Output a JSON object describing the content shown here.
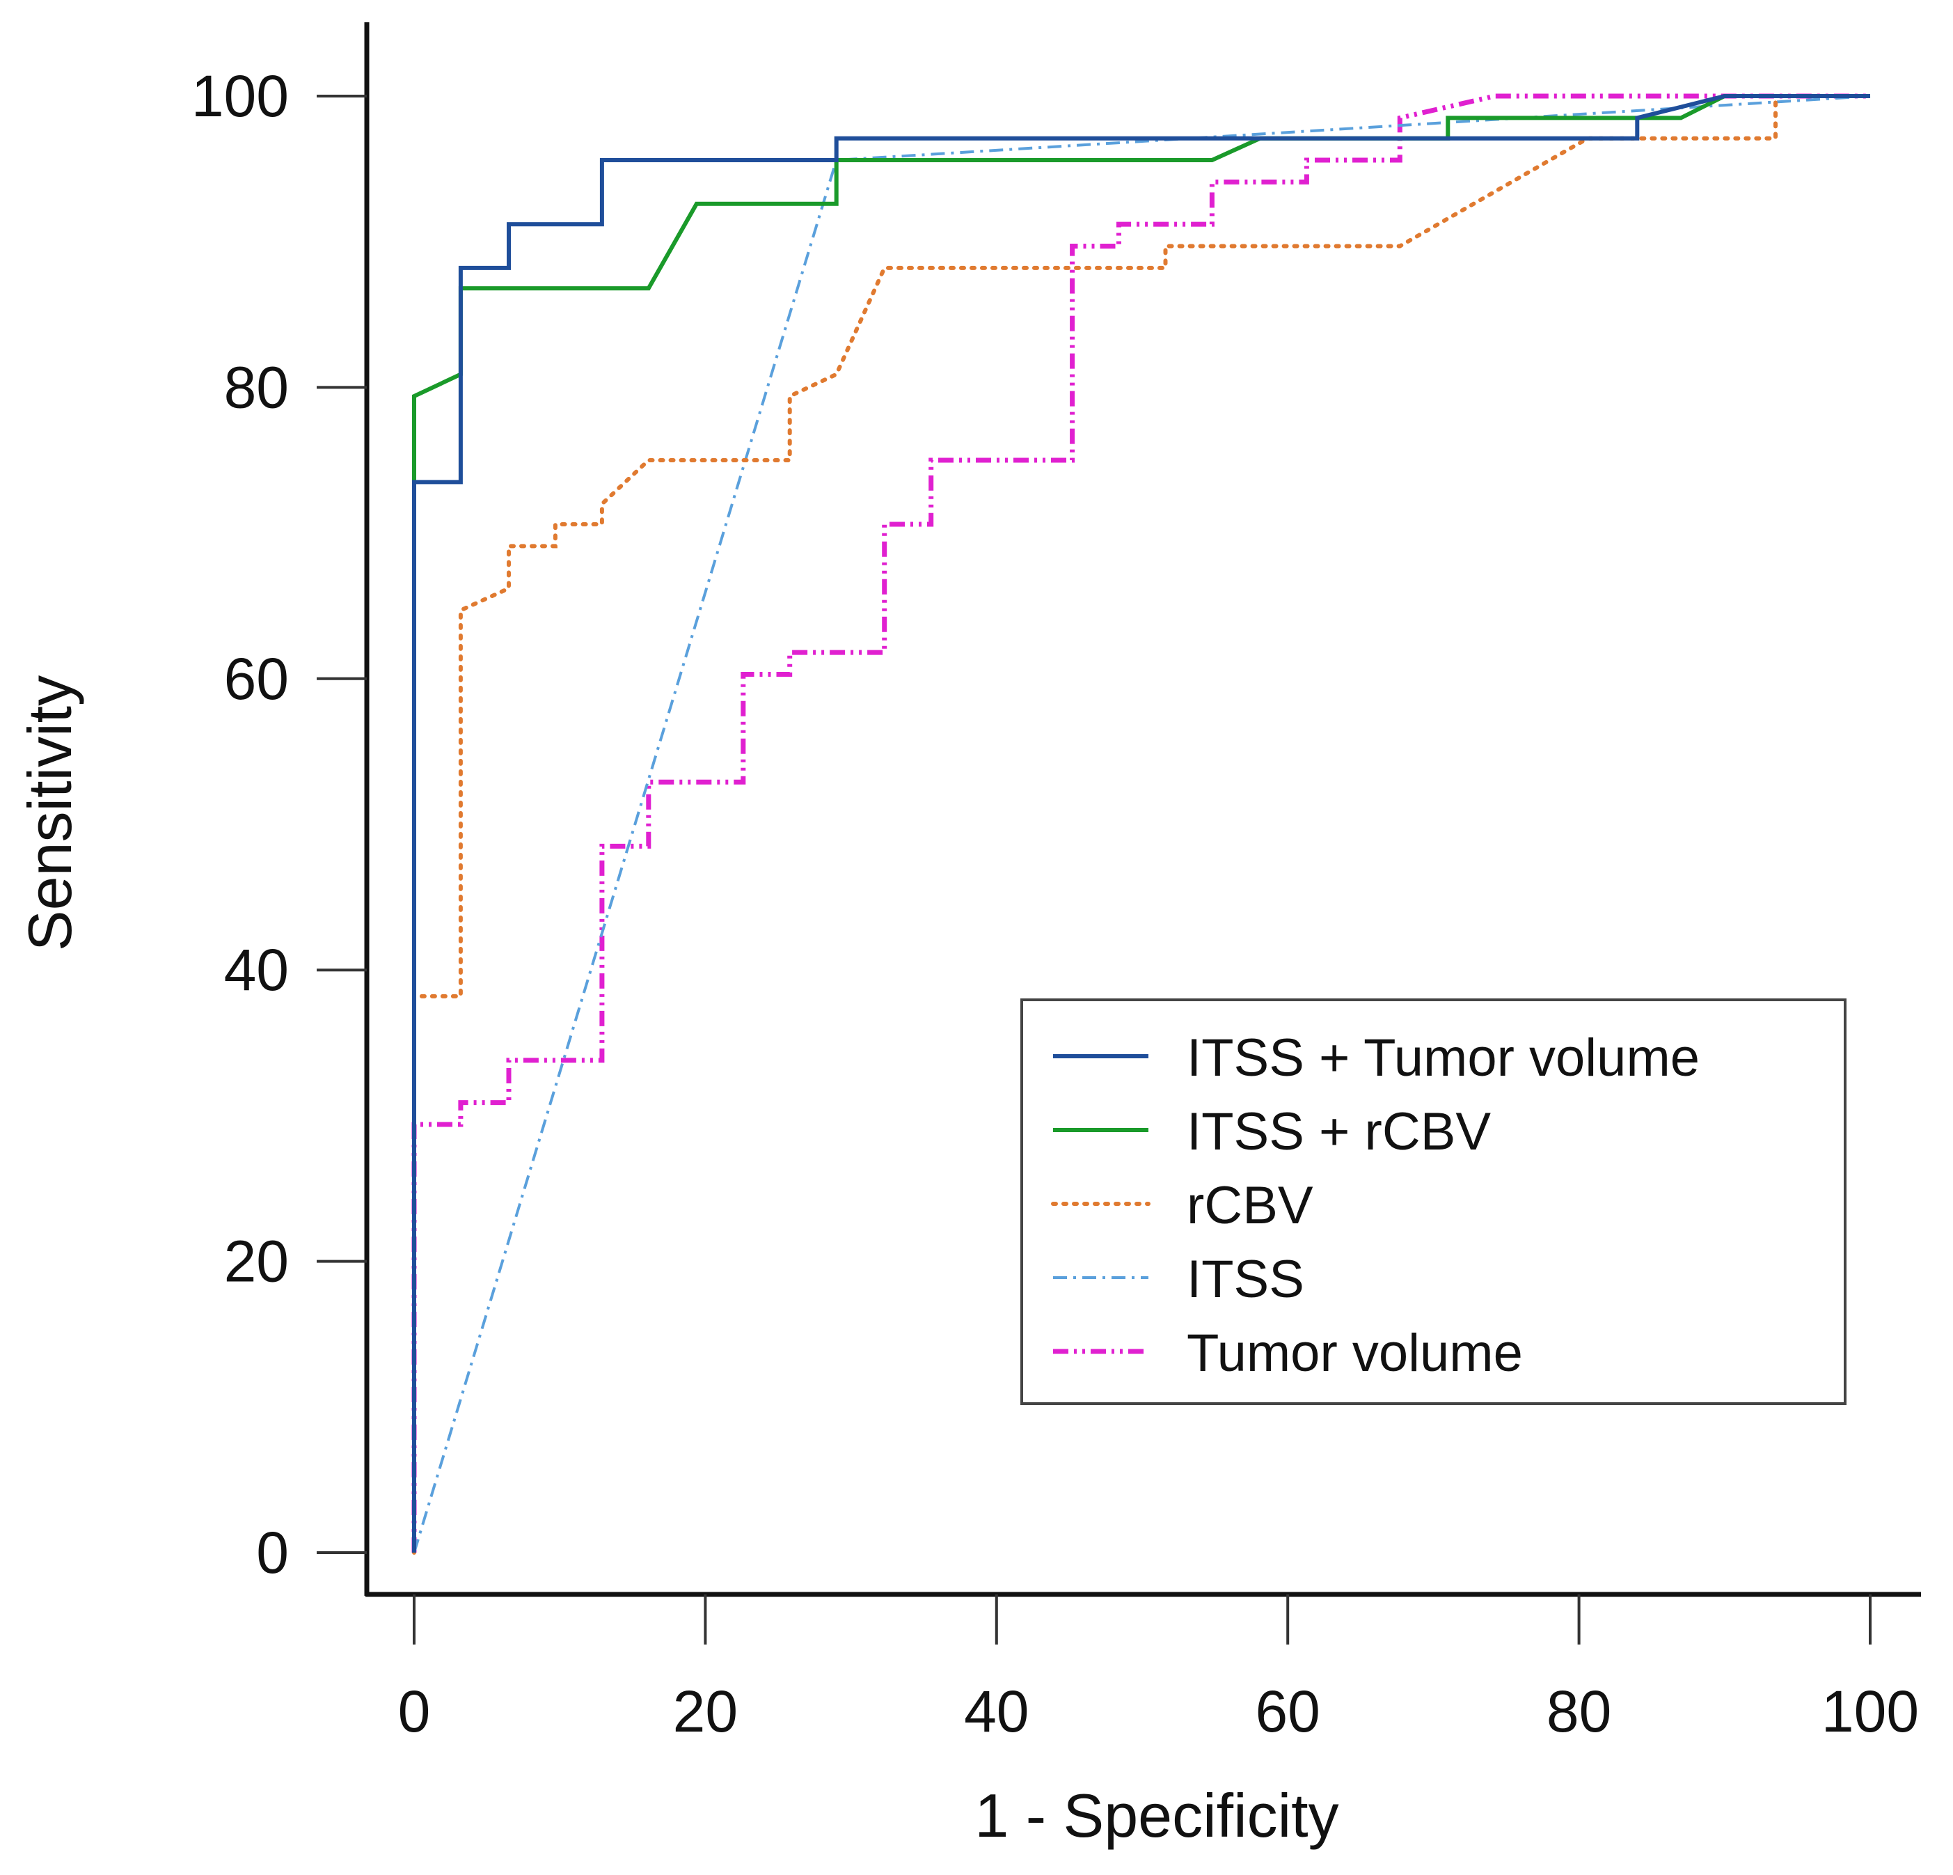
{
  "chart_data": {
    "type": "line",
    "title": "",
    "xlabel": "1 - Specificity",
    "ylabel": "Sensitivity",
    "xlim": [
      0,
      100
    ],
    "ylim": [
      0,
      100
    ],
    "xticks": [
      0,
      20,
      40,
      60,
      80,
      100
    ],
    "yticks": [
      0,
      20,
      40,
      60,
      80,
      100
    ],
    "grid": false,
    "legend_position": "bottom-right",
    "series": [
      {
        "name": "ITSS + Tumor volume",
        "color": "#1f4e9a",
        "dash": "solid",
        "points": [
          [
            0,
            0
          ],
          [
            0,
            73.5
          ],
          [
            3.2,
            73.5
          ],
          [
            3.2,
            88.2
          ],
          [
            6.5,
            88.2
          ],
          [
            6.5,
            91.2
          ],
          [
            12.9,
            91.2
          ],
          [
            12.9,
            95.6
          ],
          [
            29,
            95.6
          ],
          [
            29,
            97.1
          ],
          [
            84,
            97.1
          ],
          [
            84,
            98.5
          ],
          [
            90,
            100
          ],
          [
            100,
            100
          ]
        ]
      },
      {
        "name": "ITSS + rCBV",
        "color": "#1a9a2a",
        "dash": "solid",
        "points": [
          [
            0,
            0
          ],
          [
            0,
            79.4
          ],
          [
            3.2,
            80.9
          ],
          [
            3.2,
            86.8
          ],
          [
            16.1,
            86.8
          ],
          [
            19.4,
            92.6
          ],
          [
            29,
            92.6
          ],
          [
            29,
            95.6
          ],
          [
            54.8,
            95.6
          ],
          [
            58.1,
            97.1
          ],
          [
            71,
            97.1
          ],
          [
            71,
            98.5
          ],
          [
            87,
            98.5
          ],
          [
            90,
            100
          ],
          [
            100,
            100
          ]
        ]
      },
      {
        "name": "rCBV",
        "color": "#e07a30",
        "dash": "dotted",
        "points": [
          [
            0,
            0
          ],
          [
            0,
            38.2
          ],
          [
            3.2,
            38.2
          ],
          [
            3.2,
            64.7
          ],
          [
            6.5,
            66.2
          ],
          [
            6.5,
            69.1
          ],
          [
            9.7,
            69.1
          ],
          [
            9.7,
            70.6
          ],
          [
            12.9,
            70.6
          ],
          [
            12.9,
            72
          ],
          [
            16.1,
            75
          ],
          [
            25.8,
            75
          ],
          [
            25.8,
            79.4
          ],
          [
            29,
            80.9
          ],
          [
            32.3,
            88.2
          ],
          [
            51.6,
            88.2
          ],
          [
            51.6,
            89.7
          ],
          [
            67.7,
            89.7
          ],
          [
            80.6,
            97.1
          ],
          [
            93.5,
            97.1
          ],
          [
            93.5,
            100
          ],
          [
            100,
            100
          ]
        ]
      },
      {
        "name": "ITSS",
        "color": "#5aa0dc",
        "dash": "dashdot",
        "points": [
          [
            0,
            0
          ],
          [
            29,
            95.6
          ],
          [
            68,
            98
          ],
          [
            100,
            100
          ]
        ]
      },
      {
        "name": "Tumor volume",
        "color": "#e020d0",
        "dash": "dashdotdot",
        "points": [
          [
            0,
            0
          ],
          [
            0,
            29.4
          ],
          [
            3.2,
            29.4
          ],
          [
            3.2,
            30.9
          ],
          [
            6.5,
            30.9
          ],
          [
            6.5,
            33.8
          ],
          [
            12.9,
            33.8
          ],
          [
            12.9,
            48.5
          ],
          [
            16.1,
            48.5
          ],
          [
            16.1,
            52.9
          ],
          [
            22.6,
            52.9
          ],
          [
            22.6,
            60.3
          ],
          [
            25.8,
            60.3
          ],
          [
            25.8,
            61.8
          ],
          [
            32.3,
            61.8
          ],
          [
            32.3,
            70.6
          ],
          [
            35.5,
            70.6
          ],
          [
            35.5,
            75
          ],
          [
            45.2,
            75
          ],
          [
            45.2,
            89.7
          ],
          [
            48.4,
            89.7
          ],
          [
            48.4,
            91.2
          ],
          [
            54.8,
            91.2
          ],
          [
            54.8,
            94.1
          ],
          [
            61.3,
            94.1
          ],
          [
            61.3,
            95.6
          ],
          [
            67.7,
            95.6
          ],
          [
            67.7,
            98.5
          ],
          [
            74.2,
            100
          ],
          [
            100,
            100
          ]
        ]
      }
    ]
  }
}
